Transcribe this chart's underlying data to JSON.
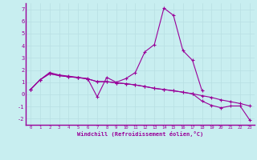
{
  "xlabel": "Windchill (Refroidissement éolien,°C)",
  "bg_color": "#c8eef0",
  "grid_color": "#b8dfe2",
  "line_color": "#990099",
  "x": [
    0,
    1,
    2,
    3,
    4,
    5,
    6,
    7,
    8,
    9,
    10,
    11,
    12,
    13,
    14,
    15,
    16,
    17,
    18,
    19,
    20,
    21,
    22,
    23
  ],
  "line1": [
    0.4,
    1.2,
    1.8,
    1.6,
    1.5,
    1.4,
    1.3,
    -0.2,
    1.4,
    1.0,
    1.3,
    1.8,
    3.5,
    4.1,
    7.1,
    6.5,
    3.6,
    2.8,
    0.3,
    null,
    null,
    null,
    null,
    null
  ],
  "line2": [
    0.4,
    1.2,
    1.7,
    1.55,
    1.45,
    1.38,
    1.28,
    1.05,
    1.05,
    0.95,
    0.88,
    0.78,
    0.65,
    0.5,
    0.4,
    0.3,
    0.18,
    0.05,
    -0.1,
    -0.25,
    -0.45,
    -0.6,
    -0.75,
    -0.95
  ],
  "line3": [
    0.4,
    1.2,
    1.7,
    1.55,
    1.45,
    1.38,
    1.28,
    1.05,
    1.05,
    0.95,
    0.88,
    0.78,
    0.65,
    0.5,
    0.4,
    0.3,
    0.18,
    0.05,
    -0.55,
    -0.9,
    -1.1,
    -0.95,
    -0.95,
    -2.1
  ],
  "ylim": [
    -2.5,
    7.5
  ],
  "xlim": [
    -0.5,
    23.5
  ],
  "yticks": [
    -2,
    -1,
    0,
    1,
    2,
    3,
    4,
    5,
    6,
    7
  ],
  "xticks": [
    0,
    1,
    2,
    3,
    4,
    5,
    6,
    7,
    8,
    9,
    10,
    11,
    12,
    13,
    14,
    15,
    16,
    17,
    18,
    19,
    20,
    21,
    22,
    23
  ]
}
